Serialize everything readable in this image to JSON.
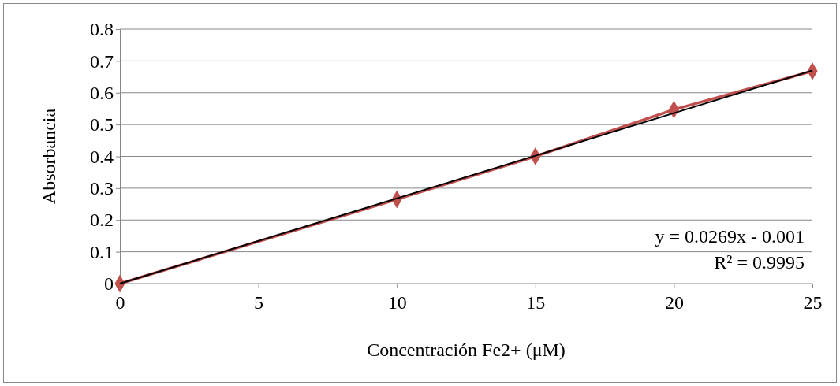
{
  "chart_data": {
    "type": "line",
    "xlabel": "Concentración Fe2+ (μM)",
    "ylabel": "Absorbancia",
    "xlim": [
      0,
      25
    ],
    "xticks": [
      0,
      5,
      10,
      15,
      20,
      25
    ],
    "ylim": [
      0,
      0.8
    ],
    "yticks": [
      0,
      0.1,
      0.2,
      0.3,
      0.4,
      0.5,
      0.6,
      0.7,
      0.8
    ],
    "grid": "y",
    "marker": "diamond",
    "line_style": "solid",
    "series": [
      {
        "color": "#c0504d",
        "x": [
          0,
          10,
          15,
          20,
          25
        ],
        "values": [
          0,
          0.265,
          0.4,
          0.547,
          0.668
        ]
      },
      {
        "color": "#000000",
        "x": [
          0,
          25
        ],
        "values": [
          0,
          0.67
        ],
        "marker": "none"
      }
    ],
    "annotations": [
      "y = 0.0269x - 0.001",
      "R² = 0.9995"
    ]
  }
}
